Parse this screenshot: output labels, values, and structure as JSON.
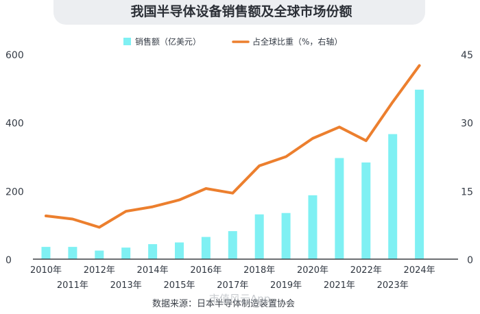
{
  "chart_data": {
    "type": "bar",
    "title": "我国半导体设备销售额及全球市场份额",
    "categories": [
      "2010年",
      "2011年",
      "2012年",
      "2013年",
      "2014年",
      "2015年",
      "2016年",
      "2017年",
      "2018年",
      "2019年",
      "2020年",
      "2021年",
      "2022年",
      "2023年",
      "2024年"
    ],
    "series": [
      {
        "name": "销售额（亿美元）",
        "type": "bar",
        "axis": "left",
        "color": "#7ff0f3",
        "values": [
          36,
          36,
          25,
          34,
          44,
          49,
          65,
          82,
          131,
          135,
          187,
          296,
          283,
          366,
          496
        ]
      },
      {
        "name": "占全球比重（%，右轴）",
        "type": "line",
        "axis": "right",
        "color": "#ec7f2e",
        "values": [
          9.5,
          8.8,
          7.0,
          10.5,
          11.5,
          13.0,
          15.5,
          14.5,
          20.5,
          22.5,
          26.5,
          29.0,
          26.0,
          34.5,
          42.5
        ]
      }
    ],
    "y_left": {
      "min": 0,
      "max": 600,
      "ticks": [
        0,
        200,
        400,
        600
      ]
    },
    "y_right": {
      "min": 0,
      "max": 45,
      "ticks": [
        0,
        15,
        30,
        45
      ]
    },
    "grid": false,
    "legend_position": "top"
  },
  "source_text": "数据来源：日本半导体制造装置协会",
  "watermark_text": "市值风云App"
}
